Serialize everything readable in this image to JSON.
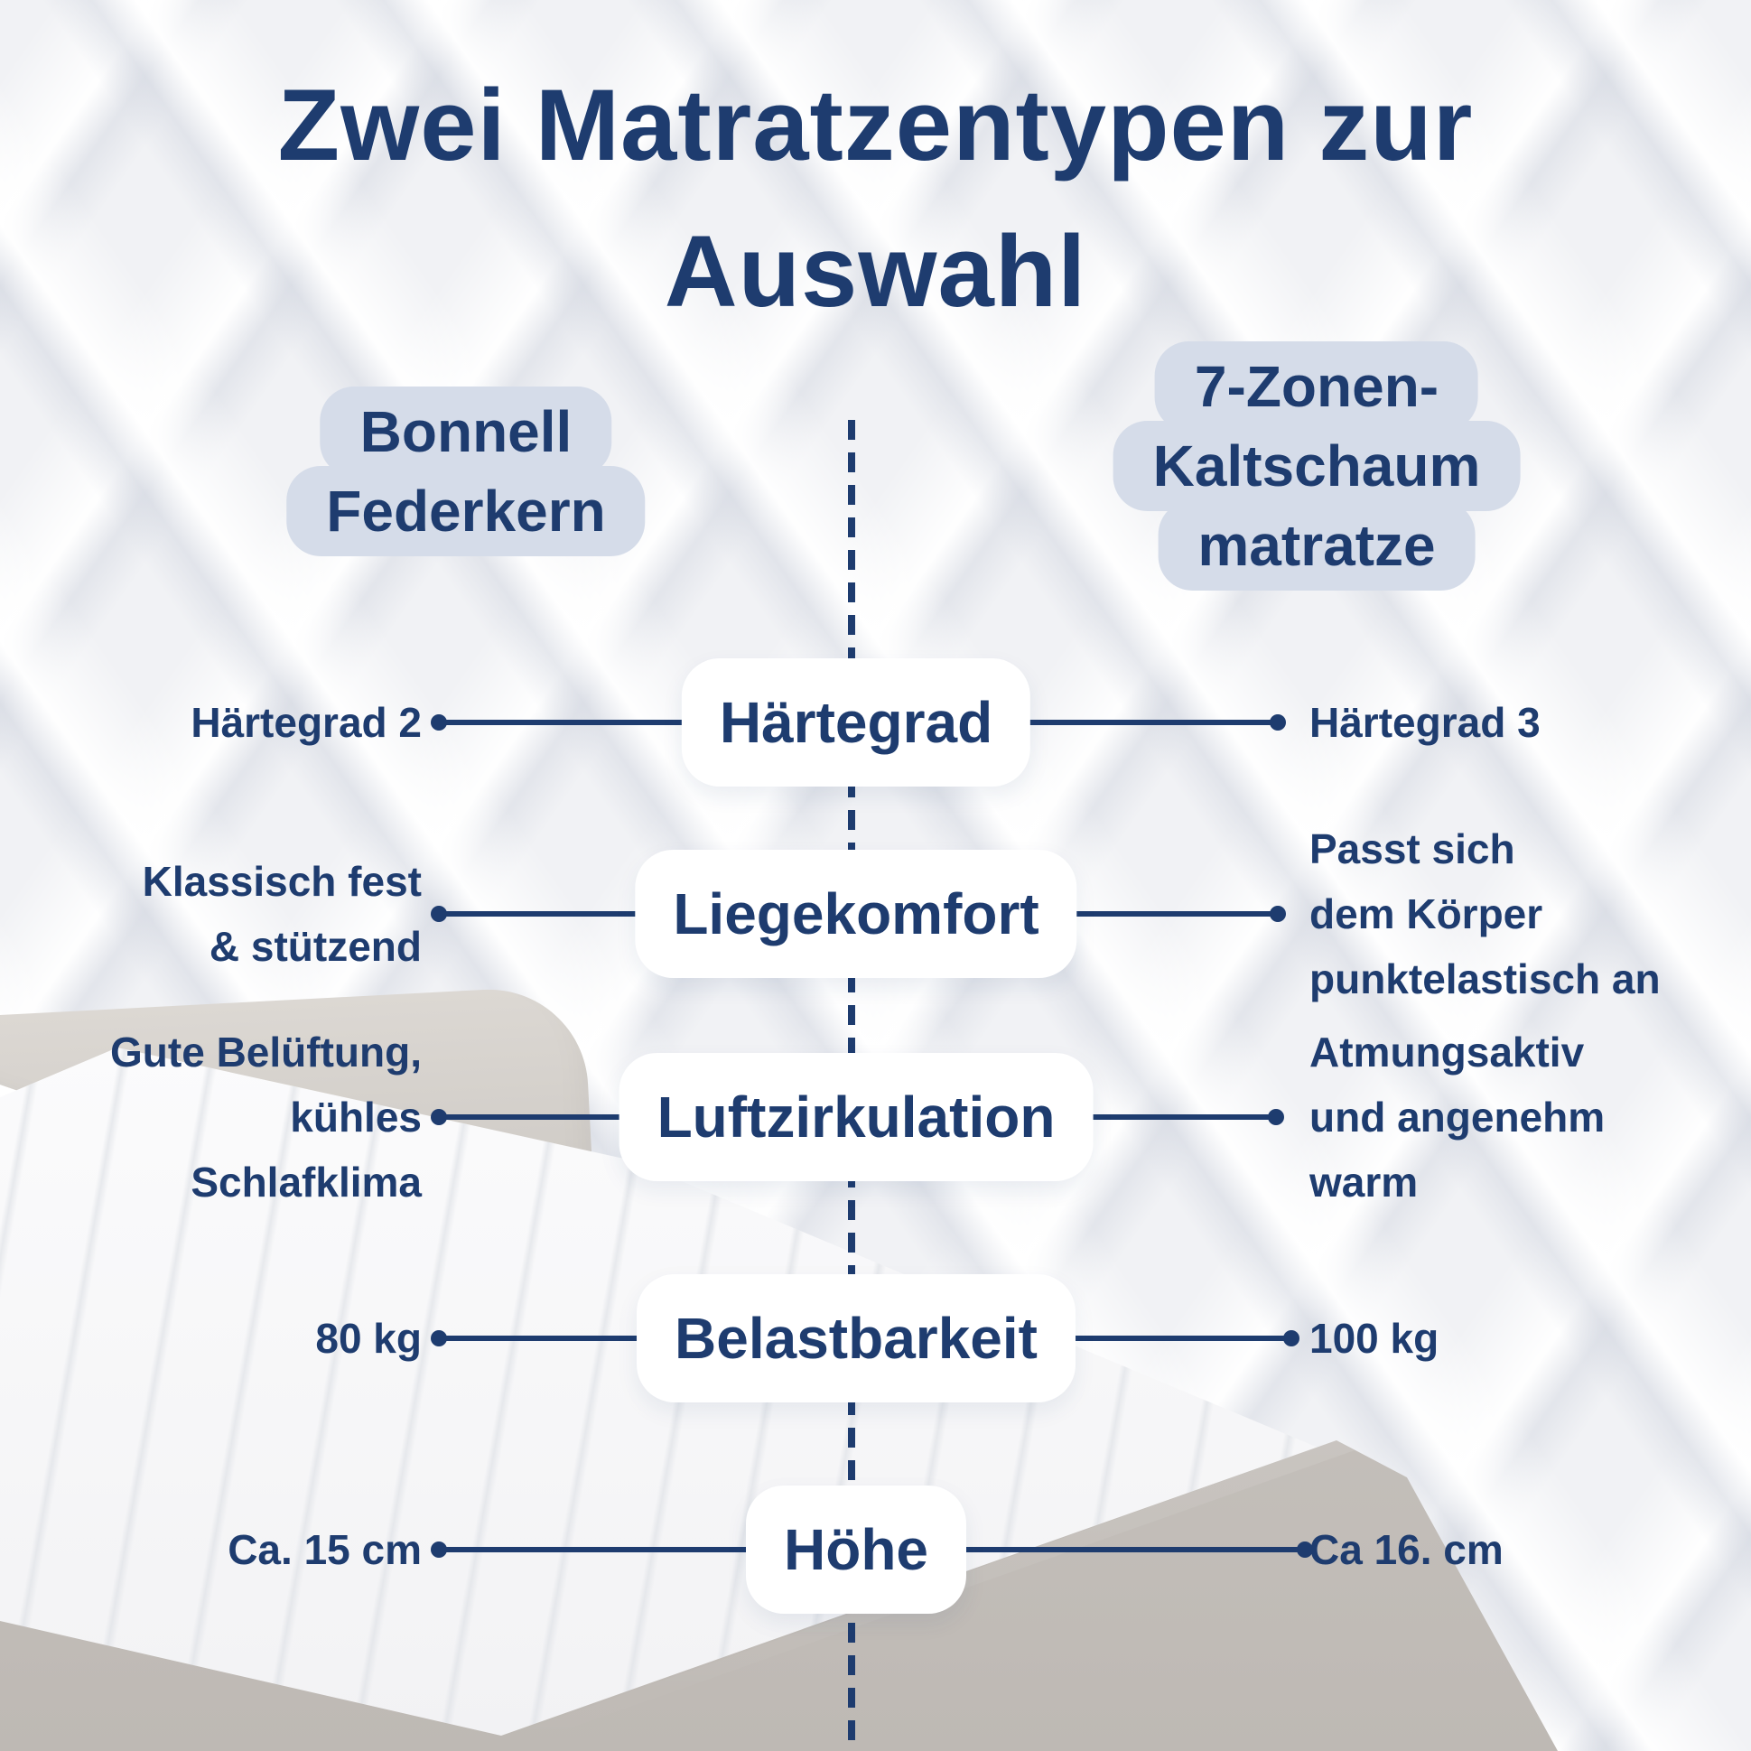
{
  "title": {
    "line1": "Zwei Matratzentypen zur",
    "line2": "Auswahl"
  },
  "columns": {
    "left": {
      "name_lines": [
        "Bonnell",
        "Federkern"
      ]
    },
    "right": {
      "name_lines": [
        "7-Zonen-",
        "Kaltschaum",
        "matratze"
      ]
    }
  },
  "rows": [
    {
      "label": "Härtegrad",
      "left_lines": [
        "Härtegrad 2"
      ],
      "right_lines": [
        "Härtegrad 3"
      ]
    },
    {
      "label": "Liegekomfort",
      "left_lines": [
        "Klassisch fest",
        "& stützend"
      ],
      "right_lines": [
        "Passt sich",
        "dem Körper",
        "punktelastisch an"
      ]
    },
    {
      "label": "Luftzirkulation",
      "left_lines": [
        "Gute Belüftung,",
        "kühles",
        "Schlafklima"
      ],
      "right_lines": [
        "Atmungsaktiv",
        "und angenehm",
        "warm"
      ]
    },
    {
      "label": "Belastbarkeit",
      "left_lines": [
        "80 kg"
      ],
      "right_lines": [
        "100 kg"
      ]
    },
    {
      "label": "Höhe",
      "left_lines": [
        "Ca. 15 cm"
      ],
      "right_lines": [
        "Ca 16. cm"
      ]
    }
  ],
  "colors": {
    "navy_text": "#1e3c6f",
    "header_highlight": "#d5dce9",
    "pill_background": "#ffffff",
    "background_quilt": "#f1f2f5",
    "bed_fabric_beige": "#cfcbc6"
  }
}
